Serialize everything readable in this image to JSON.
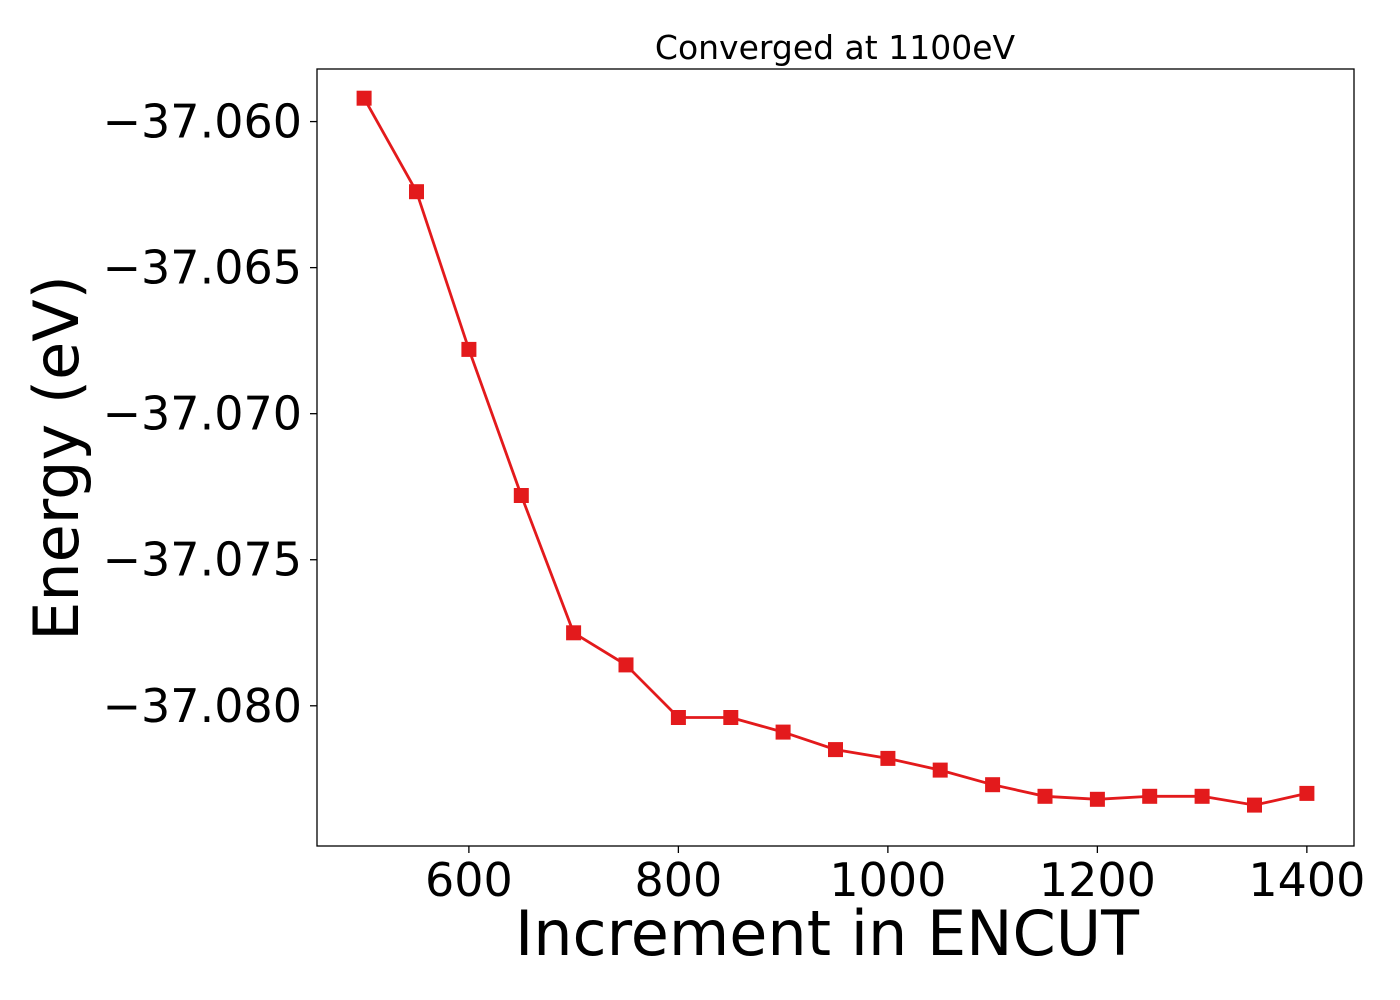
{
  "chart_data": {
    "type": "line",
    "title": "Converged at 1100eV",
    "xlabel": "Increment in ENCUT",
    "ylabel": "Energy (eV)",
    "xlim": [
      455,
      1445
    ],
    "ylim": [
      -37.0848,
      -37.0582
    ],
    "x_ticks": [
      600,
      800,
      1000,
      1200,
      1400
    ],
    "x_tick_labels": [
      "600",
      "800",
      "1000",
      "1200",
      "1400"
    ],
    "y_ticks": [
      -37.06,
      -37.065,
      -37.07,
      -37.075,
      -37.08
    ],
    "y_tick_labels": [
      "−37.060",
      "−37.065",
      "−37.070",
      "−37.075",
      "−37.080"
    ],
    "grid": false,
    "series": [
      {
        "color": "#e31a1c",
        "marker": "square",
        "x": [
          500,
          550,
          600,
          650,
          700,
          750,
          800,
          850,
          900,
          950,
          1000,
          1050,
          1100,
          1150,
          1200,
          1250,
          1300,
          1350,
          1400
        ],
        "values": [
          -37.0592,
          -37.0624,
          -37.0678,
          -37.0728,
          -37.0775,
          -37.0786,
          -37.0804,
          -37.0804,
          -37.0809,
          -37.0815,
          -37.0818,
          -37.0822,
          -37.0827,
          -37.0831,
          -37.0832,
          -37.0831,
          -37.0831,
          -37.0834,
          -37.083
        ]
      }
    ]
  }
}
